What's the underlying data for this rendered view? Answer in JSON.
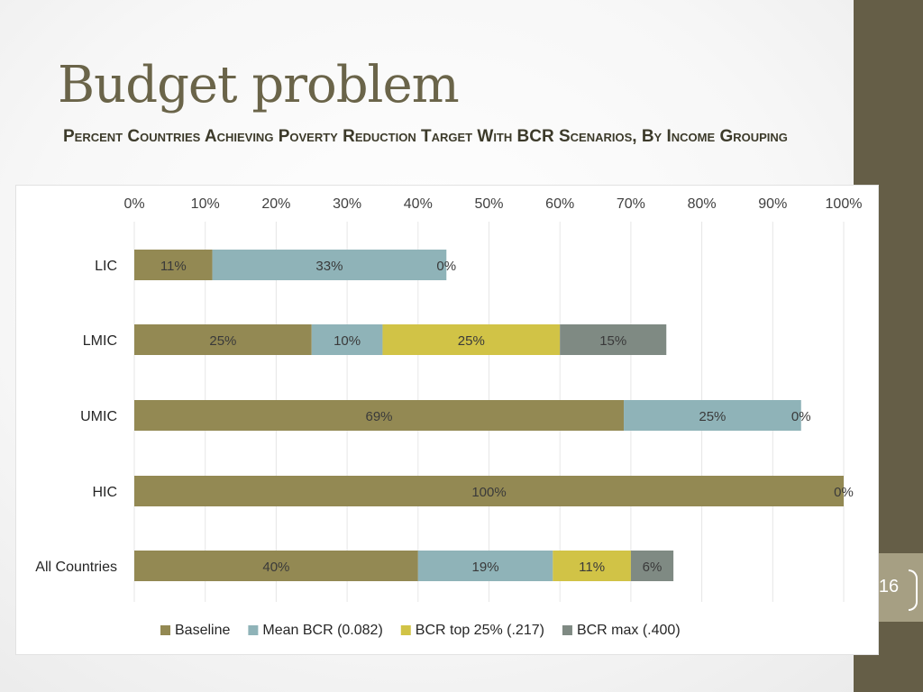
{
  "slide": {
    "title": "Budget problem",
    "subtitle": "Percent Countries Achieving Poverty Reduction Target With BCR Scenarios, By Income Grouping",
    "page_number": "16"
  },
  "colors": {
    "band": "#655e47",
    "title": "#6a6449",
    "series": [
      "#938953",
      "#8fb3b8",
      "#d1c346",
      "#7f8a83"
    ]
  },
  "chart_data": {
    "type": "bar",
    "orientation": "horizontal",
    "stacked": true,
    "title": "Percent Countries Achieving Poverty Reduction Target With BCR Scenarios, By Income Grouping",
    "categories": [
      "LIC",
      "LMIC",
      "UMIC",
      "HIC",
      "All Countries"
    ],
    "series": [
      {
        "name": "Baseline",
        "values": [
          0.11,
          0.25,
          0.69,
          1.0,
          0.4
        ],
        "labels": [
          "11%",
          "25%",
          "69%",
          "100%",
          "40%"
        ]
      },
      {
        "name": "Mean BCR (0.082)",
        "values": [
          0.33,
          0.1,
          0.25,
          0.0,
          0.19
        ],
        "labels": [
          "33%",
          "10%",
          "25%",
          "",
          "19%"
        ]
      },
      {
        "name": "BCR top 25% (.217)",
        "values": [
          0.0,
          0.25,
          0.0,
          0.0,
          0.11
        ],
        "labels": [
          "0%",
          "25%",
          "0%",
          "0%",
          "11%"
        ]
      },
      {
        "name": "BCR max (.400)",
        "values": [
          0.0,
          0.15,
          0.0,
          0.0,
          0.06
        ],
        "labels": [
          "",
          "15%",
          "",
          "",
          "6%"
        ]
      }
    ],
    "xticks": [
      "0%",
      "10%",
      "20%",
      "30%",
      "40%",
      "50%",
      "60%",
      "70%",
      "80%",
      "90%",
      "100%"
    ],
    "xlim": [
      0,
      1
    ],
    "axis_position": "top",
    "grid": true,
    "legend": "bottom"
  }
}
